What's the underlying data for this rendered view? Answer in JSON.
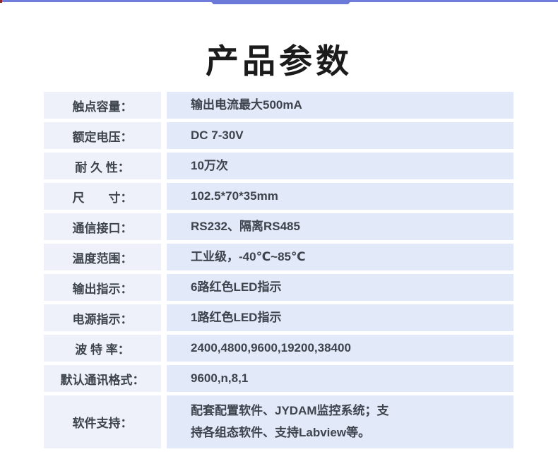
{
  "page": {
    "title": "产品参数"
  },
  "decor": {
    "accent_color": "#6b7ad8",
    "corner_marker_color": "#8e2727",
    "label_cell_bg": "#eef1fa",
    "value_cell_bg": "#e2e9f8",
    "text_color": "#3e444d"
  },
  "table": {
    "rows": [
      {
        "label": "触点容量：",
        "value": "输出电流最大500mA"
      },
      {
        "label": "额定电压：",
        "value": "DC 7-30V"
      },
      {
        "label": "耐 久 性：",
        "value": "10万次"
      },
      {
        "label": "尺　　寸：",
        "value": "102.5*70*35mm"
      },
      {
        "label": "通信接口：",
        "value": "RS232、隔离RS485"
      },
      {
        "label": "温度范围：",
        "value": "工业级，-40℃~85℃"
      },
      {
        "label": "输出指示：",
        "value": "6路红色LED指示"
      },
      {
        "label": "电源指示：",
        "value": "1路红色LED指示"
      },
      {
        "label": "波 特 率：",
        "value": "2400,4800,9600,19200,38400"
      },
      {
        "label": "默认通讯格式：",
        "value": "9600,n,8,1"
      },
      {
        "label": "软件支持：",
        "value": "配套配置软件、JYDAM监控系统；支\n持各组态软件、支持Labview等。"
      }
    ]
  }
}
